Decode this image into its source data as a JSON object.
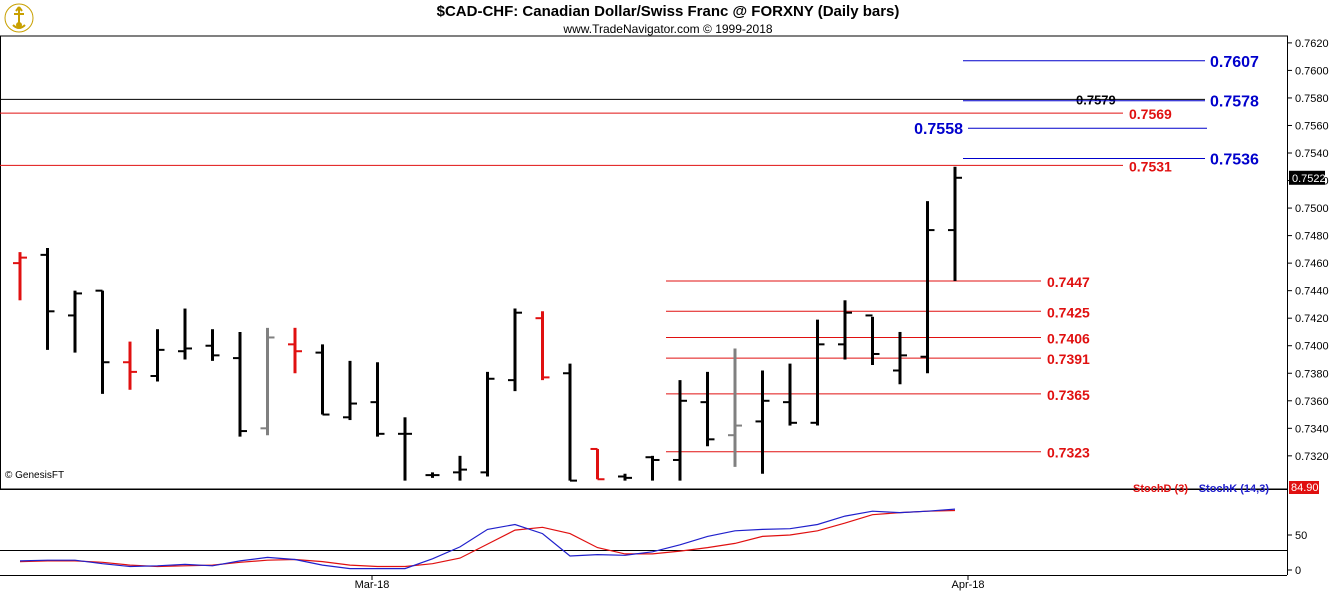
{
  "header": {
    "title": "$CAD-CHF:  Canadian Dollar/Swiss Franc @ FORXNY  (Daily bars)",
    "subtitle": "www.TradeNavigator.com © 1999-2018",
    "logo_icon": "trade-navigator-logo-icon"
  },
  "watermark": "© GenesisFT",
  "colors": {
    "up_bar": "#000000",
    "down_bar": "#e01010",
    "neutral_bar": "#808080",
    "blue_level": "#0000cc",
    "red_level": "#e01010",
    "stochd": "#e01010",
    "stochk": "#2020cc"
  },
  "chart_data": [
    {
      "type": "ohlc",
      "yaxis_labels": [
        "0.7620",
        "0.7600",
        "0.7580",
        "0.7560",
        "0.7540",
        "0.7520",
        "0.7500",
        "0.7480",
        "0.7460",
        "0.7440",
        "0.7420",
        "0.7400",
        "0.7380",
        "0.7360",
        "0.7340",
        "0.7320"
      ],
      "ylim": [
        0.7301,
        0.7625
      ],
      "xaxis_labels": [
        "Mar-18",
        "Apr-18"
      ],
      "last_price": "0.7522",
      "bars": [
        {
          "o": 0.746,
          "h": 0.7468,
          "l": 0.7433,
          "c": 0.7464,
          "color": "down"
        },
        {
          "o": 0.7466,
          "h": 0.7471,
          "l": 0.7397,
          "c": 0.7425,
          "color": "up"
        },
        {
          "o": 0.7422,
          "h": 0.744,
          "l": 0.7395,
          "c": 0.7438,
          "color": "up"
        },
        {
          "o": 0.744,
          "h": 0.744,
          "l": 0.7365,
          "c": 0.7388,
          "color": "up"
        },
        {
          "o": 0.7388,
          "h": 0.7403,
          "l": 0.7368,
          "c": 0.7381,
          "color": "down"
        },
        {
          "o": 0.7378,
          "h": 0.7412,
          "l": 0.7374,
          "c": 0.7397,
          "color": "up"
        },
        {
          "o": 0.7396,
          "h": 0.7427,
          "l": 0.739,
          "c": 0.7398,
          "color": "up"
        },
        {
          "o": 0.74,
          "h": 0.7412,
          "l": 0.7389,
          "c": 0.7393,
          "color": "up"
        },
        {
          "o": 0.7391,
          "h": 0.741,
          "l": 0.7334,
          "c": 0.7338,
          "color": "up"
        },
        {
          "o": 0.734,
          "h": 0.7413,
          "l": 0.7335,
          "c": 0.7406,
          "color": "neutral"
        },
        {
          "o": 0.7401,
          "h": 0.7413,
          "l": 0.738,
          "c": 0.7396,
          "color": "down"
        },
        {
          "o": 0.7395,
          "h": 0.7401,
          "l": 0.735,
          "c": 0.735,
          "color": "up"
        },
        {
          "o": 0.7348,
          "h": 0.7389,
          "l": 0.7346,
          "c": 0.7358,
          "color": "up"
        },
        {
          "o": 0.7359,
          "h": 0.7388,
          "l": 0.7334,
          "c": 0.7336,
          "color": "up"
        },
        {
          "o": 0.7336,
          "h": 0.7348,
          "l": 0.7302,
          "c": 0.7336,
          "color": "up"
        },
        {
          "o": 0.7306,
          "h": 0.7308,
          "l": 0.7304,
          "c": 0.7306,
          "color": "up"
        },
        {
          "o": 0.7308,
          "h": 0.732,
          "l": 0.7302,
          "c": 0.731,
          "color": "up"
        },
        {
          "o": 0.7308,
          "h": 0.7381,
          "l": 0.7305,
          "c": 0.7376,
          "color": "up"
        },
        {
          "o": 0.7375,
          "h": 0.7427,
          "l": 0.7367,
          "c": 0.7424,
          "color": "up"
        },
        {
          "o": 0.742,
          "h": 0.7425,
          "l": 0.7375,
          "c": 0.7377,
          "color": "down"
        },
        {
          "o": 0.738,
          "h": 0.7387,
          "l": 0.7302,
          "c": 0.7302,
          "color": "up"
        },
        {
          "o": 0.7325,
          "h": 0.7325,
          "l": 0.7303,
          "c": 0.7303,
          "color": "down"
        },
        {
          "o": 0.7305,
          "h": 0.7307,
          "l": 0.7302,
          "c": 0.7304,
          "color": "up"
        },
        {
          "o": 0.7319,
          "h": 0.732,
          "l": 0.7302,
          "c": 0.7317,
          "color": "up"
        },
        {
          "o": 0.7317,
          "h": 0.7375,
          "l": 0.7302,
          "c": 0.736,
          "color": "up"
        },
        {
          "o": 0.7359,
          "h": 0.7381,
          "l": 0.7327,
          "c": 0.7332,
          "color": "up"
        },
        {
          "o": 0.7335,
          "h": 0.7398,
          "l": 0.7312,
          "c": 0.7342,
          "color": "neutral"
        },
        {
          "o": 0.7345,
          "h": 0.7382,
          "l": 0.7307,
          "c": 0.736,
          "color": "up"
        },
        {
          "o": 0.7359,
          "h": 0.7387,
          "l": 0.7342,
          "c": 0.7344,
          "color": "up"
        },
        {
          "o": 0.7344,
          "h": 0.7419,
          "l": 0.7342,
          "c": 0.7401,
          "color": "up"
        },
        {
          "o": 0.7401,
          "h": 0.7433,
          "l": 0.739,
          "c": 0.7424,
          "color": "up"
        },
        {
          "o": 0.7422,
          "h": 0.7421,
          "l": 0.7386,
          "c": 0.7394,
          "color": "up"
        },
        {
          "o": 0.7382,
          "h": 0.741,
          "l": 0.7372,
          "c": 0.7393,
          "color": "up"
        },
        {
          "o": 0.7392,
          "h": 0.7505,
          "l": 0.738,
          "c": 0.7484,
          "color": "up"
        },
        {
          "o": 0.7484,
          "h": 0.753,
          "l": 0.7447,
          "c": 0.7522,
          "color": "up"
        }
      ],
      "levels": [
        {
          "value": 0.7607,
          "label": "0.7607",
          "color": "blue",
          "style": "blue-right"
        },
        {
          "value": 0.7579,
          "label": "0.7579",
          "color": "black",
          "style": "black-full"
        },
        {
          "value": 0.7578,
          "label": "0.7578",
          "color": "blue",
          "style": "blue-right"
        },
        {
          "value": 0.7569,
          "label": "0.7569",
          "color": "red",
          "style": "red-full"
        },
        {
          "value": 0.7558,
          "label": "0.7558",
          "color": "blue",
          "style": "blue-left"
        },
        {
          "value": 0.7536,
          "label": "0.7536",
          "color": "blue",
          "style": "blue-right"
        },
        {
          "value": 0.7531,
          "label": "0.7531",
          "color": "red",
          "style": "red-full"
        },
        {
          "value": 0.7447,
          "label": "0.7447",
          "color": "red",
          "style": "red-partial"
        },
        {
          "value": 0.7425,
          "label": "0.7425",
          "color": "red",
          "style": "red-partial"
        },
        {
          "value": 0.7406,
          "label": "0.7406",
          "color": "red",
          "style": "red-partial"
        },
        {
          "value": 0.7391,
          "label": "0.7391",
          "color": "red",
          "style": "red-partial"
        },
        {
          "value": 0.7365,
          "label": "0.7365",
          "color": "red",
          "style": "red-partial"
        },
        {
          "value": 0.7323,
          "label": "0.7323",
          "color": "red",
          "style": "red-partial"
        }
      ]
    },
    {
      "type": "line",
      "yaxis_labels": [
        "50",
        "0"
      ],
      "ylim": [
        0,
        100
      ],
      "last_value_label": "84.90",
      "legend_position": "top-right",
      "series": [
        {
          "name": "StochD (3)",
          "color": "#e01010",
          "values": [
            12,
            13,
            13,
            11,
            7,
            5,
            6,
            7,
            11,
            14,
            15,
            12,
            7,
            5,
            5,
            9,
            17,
            37,
            57,
            61,
            52,
            32,
            23,
            23,
            27,
            32,
            38,
            48,
            50,
            56,
            67,
            79,
            82,
            84,
            85
          ]
        },
        {
          "name": "StochK (14,3)",
          "color": "#2020cc",
          "values": [
            13,
            14,
            14,
            9,
            5,
            6,
            8,
            6,
            13,
            18,
            15,
            7,
            2,
            2,
            2,
            16,
            33,
            58,
            65,
            52,
            20,
            22,
            21,
            26,
            36,
            48,
            56,
            58,
            59,
            65,
            77,
            84,
            82,
            84,
            87
          ]
        }
      ]
    }
  ]
}
